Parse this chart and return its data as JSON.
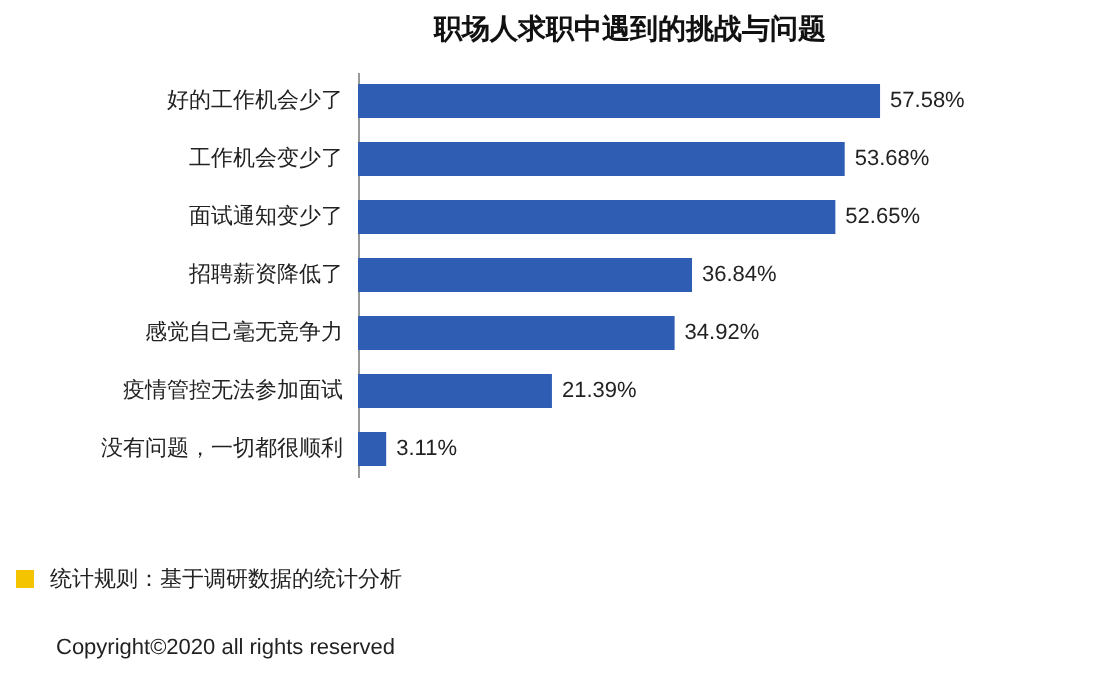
{
  "chart_data": {
    "type": "bar",
    "orientation": "horizontal",
    "title": "职场人求职中遇到的挑战与问题",
    "categories": [
      "好的工作机会少了",
      "工作机会变少了",
      "面试通知变少了",
      "招聘薪资降低了",
      "感觉自己毫无竞争力",
      "疫情管控无法参加面试",
      "没有问题，一切都很顺利"
    ],
    "values": [
      57.58,
      53.68,
      52.65,
      36.84,
      34.92,
      21.39,
      3.11
    ],
    "value_labels": [
      "57.58%",
      "53.68%",
      "52.65%",
      "36.84%",
      "34.92%",
      "21.39%",
      "3.11%"
    ],
    "color": "#2e5db3",
    "annotations": [
      "统计规则：基于调研数据的统计分析",
      "Copyright©2020 all rights reserved"
    ]
  }
}
